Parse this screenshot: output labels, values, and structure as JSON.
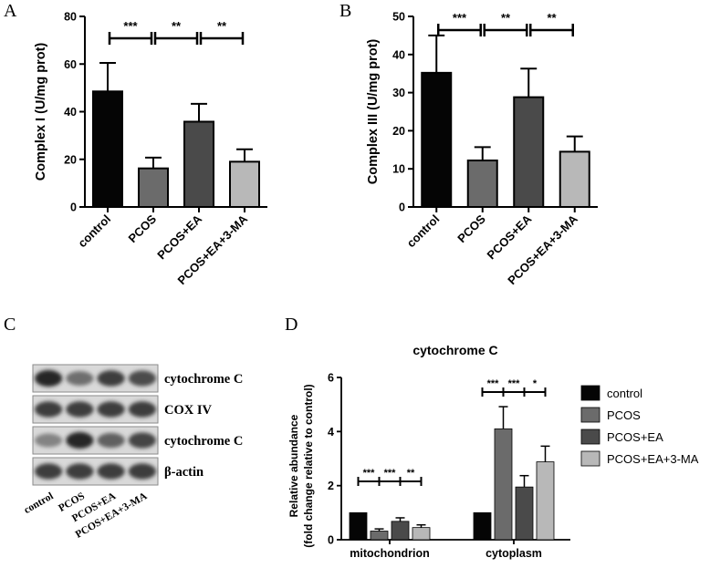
{
  "panels": {
    "a": "A",
    "b": "B",
    "c": "C",
    "d": "D"
  },
  "chart_data": [
    {
      "panel": "A",
      "type": "bar",
      "categories": [
        "control",
        "PCOS",
        "PCOS+EA",
        "PCOS+EA+3-MA"
      ],
      "values": [
        48.5,
        16.2,
        35.8,
        19.0
      ],
      "errors": [
        12.0,
        4.5,
        7.5,
        5.2
      ],
      "colors": [
        "#050505",
        "#6b6b6b",
        "#4a4a4a",
        "#b8b8b8"
      ],
      "ylabel": "Complex I (U/mg prot)",
      "ylim": [
        0,
        80
      ],
      "yticks": [
        0,
        20,
        40,
        60,
        80
      ],
      "significance": [
        {
          "from": 0,
          "to": 1,
          "label": "***"
        },
        {
          "from": 1,
          "to": 2,
          "label": "**"
        },
        {
          "from": 2,
          "to": 3,
          "label": "**"
        }
      ]
    },
    {
      "panel": "B",
      "type": "bar",
      "categories": [
        "control",
        "PCOS",
        "PCOS+EA",
        "PCOS+EA+3-MA"
      ],
      "values": [
        35.2,
        12.2,
        28.8,
        14.5
      ],
      "errors": [
        9.8,
        3.5,
        7.5,
        4.0
      ],
      "colors": [
        "#050505",
        "#6b6b6b",
        "#4a4a4a",
        "#b8b8b8"
      ],
      "ylabel": "Complex III (U/mg prot)",
      "ylim": [
        0,
        50
      ],
      "yticks": [
        0,
        10,
        20,
        30,
        40,
        50
      ],
      "significance": [
        {
          "from": 0,
          "to": 1,
          "label": "***"
        },
        {
          "from": 1,
          "to": 2,
          "label": "**"
        },
        {
          "from": 2,
          "to": 3,
          "label": "**"
        }
      ]
    },
    {
      "panel": "D",
      "type": "bar",
      "title": "cytochrome C",
      "ylabel_line1": "Relative abundance",
      "ylabel_line2": "(fold change relative to control)",
      "ylim": [
        0,
        6
      ],
      "yticks": [
        0,
        2,
        4,
        6
      ],
      "groups": [
        "mitochondrion",
        "cytoplasm"
      ],
      "series": [
        {
          "name": "control",
          "color": "#050505",
          "values": [
            1.0,
            1.0
          ],
          "errors": [
            0,
            0
          ]
        },
        {
          "name": "PCOS",
          "color": "#6b6b6b",
          "values": [
            0.32,
            4.1
          ],
          "errors": [
            0.08,
            0.82
          ]
        },
        {
          "name": "PCOS+EA",
          "color": "#4a4a4a",
          "values": [
            0.68,
            1.95
          ],
          "errors": [
            0.13,
            0.42
          ]
        },
        {
          "name": "PCOS+EA+3-MA",
          "color": "#b8b8b8",
          "values": [
            0.45,
            2.88
          ],
          "errors": [
            0.1,
            0.58
          ]
        }
      ],
      "significance": [
        {
          "group": 0,
          "from": 0,
          "to": 1,
          "label": "***"
        },
        {
          "group": 0,
          "from": 1,
          "to": 2,
          "label": "***"
        },
        {
          "group": 0,
          "from": 2,
          "to": 3,
          "label": "**"
        },
        {
          "group": 1,
          "from": 0,
          "to": 1,
          "label": "***"
        },
        {
          "group": 1,
          "from": 1,
          "to": 2,
          "label": "***"
        },
        {
          "group": 1,
          "from": 2,
          "to": 3,
          "label": "*"
        }
      ]
    }
  ],
  "blot": {
    "rows": [
      {
        "label": "cytochrome C",
        "intensity": [
          1.0,
          0.5,
          0.85,
          0.75
        ]
      },
      {
        "label": "COX IV",
        "intensity": [
          0.85,
          0.85,
          0.85,
          0.85
        ]
      },
      {
        "label": "cytochrome C",
        "intensity": [
          0.35,
          1.0,
          0.6,
          0.8
        ]
      },
      {
        "label": "β-actin",
        "intensity": [
          0.85,
          0.85,
          0.85,
          0.85
        ]
      }
    ],
    "lanes": [
      "control",
      "PCOS",
      "PCOS+EA",
      "PCOS+EA+3-MA"
    ]
  }
}
